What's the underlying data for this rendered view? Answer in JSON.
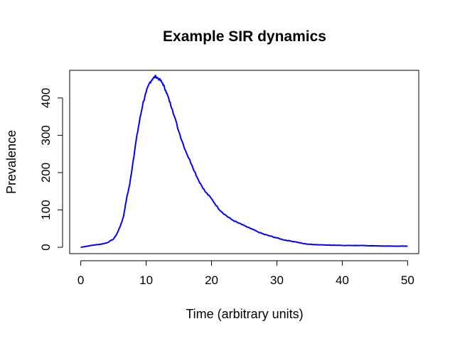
{
  "chart_data": {
    "type": "line",
    "title": "Example SIR dynamics",
    "xlabel": "Time (arbitrary units)",
    "ylabel": "Prevalence",
    "xlim": [
      -1.7,
      51.7
    ],
    "ylim": [
      -17,
      474
    ],
    "xticks": [
      0,
      10,
      20,
      30,
      40,
      50
    ],
    "yticks": [
      0,
      100,
      200,
      300,
      400
    ],
    "grid": false,
    "legend": "none",
    "colors": {
      "series": "#0000ff",
      "axes": "#000000"
    },
    "series": [
      {
        "x": [
          0,
          1,
          2,
          3,
          4,
          5,
          5.5,
          6,
          6.5,
          7,
          7.5,
          8,
          8.5,
          9,
          9.5,
          10,
          10.5,
          11,
          11.5,
          12,
          12.5,
          13,
          13.5,
          14,
          15,
          16,
          17,
          18,
          19,
          20,
          21,
          22,
          23,
          24,
          25,
          26,
          27,
          28,
          29,
          30,
          31,
          32,
          33,
          34,
          35,
          36,
          38,
          40,
          42,
          45,
          48,
          50
        ],
        "y": [
          0,
          3,
          6,
          8,
          12,
          22,
          35,
          55,
          80,
          130,
          170,
          230,
          290,
          340,
          385,
          415,
          440,
          452,
          458,
          450,
          440,
          420,
          395,
          370,
          310,
          260,
          220,
          180,
          150,
          130,
          105,
          88,
          75,
          66,
          58,
          50,
          42,
          35,
          30,
          25,
          20,
          17,
          14,
          10,
          8,
          7,
          6,
          5,
          5,
          4,
          3,
          3
        ]
      }
    ]
  }
}
